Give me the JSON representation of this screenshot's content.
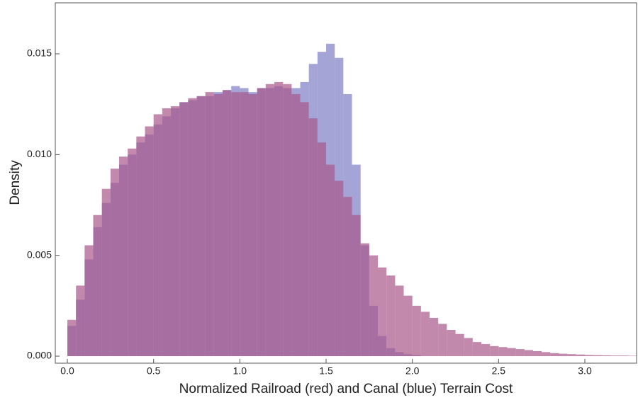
{
  "chart_data": {
    "type": "histogram",
    "xlabel": "Normalized Railroad (red) and Canal (blue) Terrain Cost",
    "ylabel": "Density",
    "bins": [
      0,
      0.05,
      0.1,
      0.15,
      0.2,
      0.25,
      0.3,
      0.35,
      0.4,
      0.45,
      0.5,
      0.55,
      0.6,
      0.65,
      0.7,
      0.75,
      0.8,
      0.85,
      0.9,
      0.95,
      1.0,
      1.05,
      1.1,
      1.15,
      1.2,
      1.25,
      1.3,
      1.35,
      1.4,
      1.45,
      1.5,
      1.55,
      1.6,
      1.65,
      1.7,
      1.75,
      1.8,
      1.85,
      1.9,
      1.95,
      2.0,
      2.05,
      2.1,
      2.15,
      2.2,
      2.25,
      2.3,
      2.35,
      2.4,
      2.45,
      2.5,
      2.55,
      2.6,
      2.65,
      2.7,
      2.75,
      2.8,
      2.85,
      2.9,
      2.95,
      3.0,
      3.05,
      3.1,
      3.15,
      3.2,
      3.25,
      3.3
    ],
    "series": [
      {
        "name": "Canal",
        "color": "#7e7ec4",
        "values": [
          0.0015,
          0.0028,
          0.0048,
          0.0064,
          0.0076,
          0.0086,
          0.0095,
          0.01,
          0.0106,
          0.011,
          0.0115,
          0.0119,
          0.0123,
          0.0126,
          0.0127,
          0.0129,
          0.0129,
          0.0131,
          0.0132,
          0.0134,
          0.0133,
          0.0131,
          0.0133,
          0.0133,
          0.0134,
          0.0133,
          0.0133,
          0.0136,
          0.0145,
          0.0151,
          0.0155,
          0.0148,
          0.013,
          0.0095,
          0.0055,
          0.0025,
          0.001,
          0.0004,
          0.0002,
          0.0001,
          5e-05,
          0,
          0,
          0,
          0,
          0,
          0,
          0,
          0,
          0,
          0,
          0,
          0,
          0,
          0,
          0,
          0,
          0,
          0,
          0,
          0,
          0,
          0,
          0,
          0,
          0
        ]
      },
      {
        "name": "Railroad",
        "color": "#a8578a",
        "values": [
          0.0018,
          0.0035,
          0.0055,
          0.007,
          0.0083,
          0.0093,
          0.0099,
          0.0103,
          0.0109,
          0.0114,
          0.012,
          0.0123,
          0.0124,
          0.0126,
          0.0128,
          0.0129,
          0.0131,
          0.013,
          0.0132,
          0.0131,
          0.0131,
          0.013,
          0.0133,
          0.0135,
          0.0136,
          0.0135,
          0.013,
          0.0126,
          0.0118,
          0.0106,
          0.0095,
          0.0087,
          0.0079,
          0.007,
          0.0056,
          0.005,
          0.0044,
          0.004,
          0.0035,
          0.003,
          0.0025,
          0.0022,
          0.0019,
          0.0016,
          0.0013,
          0.0011,
          0.0009,
          0.0007,
          0.0006,
          0.0005,
          0.00045,
          0.0004,
          0.00035,
          0.0003,
          0.00025,
          0.0002,
          0.00015,
          0.00012,
          0.0001,
          8e-05,
          6e-05,
          5e-05,
          4e-05,
          3e-05,
          3e-05,
          2e-05
        ]
      }
    ],
    "xlim": [
      -0.07,
      3.3
    ],
    "ylim": [
      -0.00035,
      0.01753
    ],
    "xticks": [
      {
        "value": 0,
        "label": "0.0"
      },
      0.5,
      {
        "value": 1,
        "label": "1.0"
      },
      1.5,
      {
        "value": 2,
        "label": "2.0"
      },
      2.5,
      {
        "value": 3,
        "label": "3.0"
      }
    ],
    "yticks": [
      {
        "value": 0,
        "label": "0.000"
      },
      {
        "value": 0.005,
        "label": "0.005"
      },
      {
        "value": 0.01,
        "label": "0.010"
      },
      {
        "value": 0.015,
        "label": "0.015"
      }
    ],
    "grid": false
  }
}
